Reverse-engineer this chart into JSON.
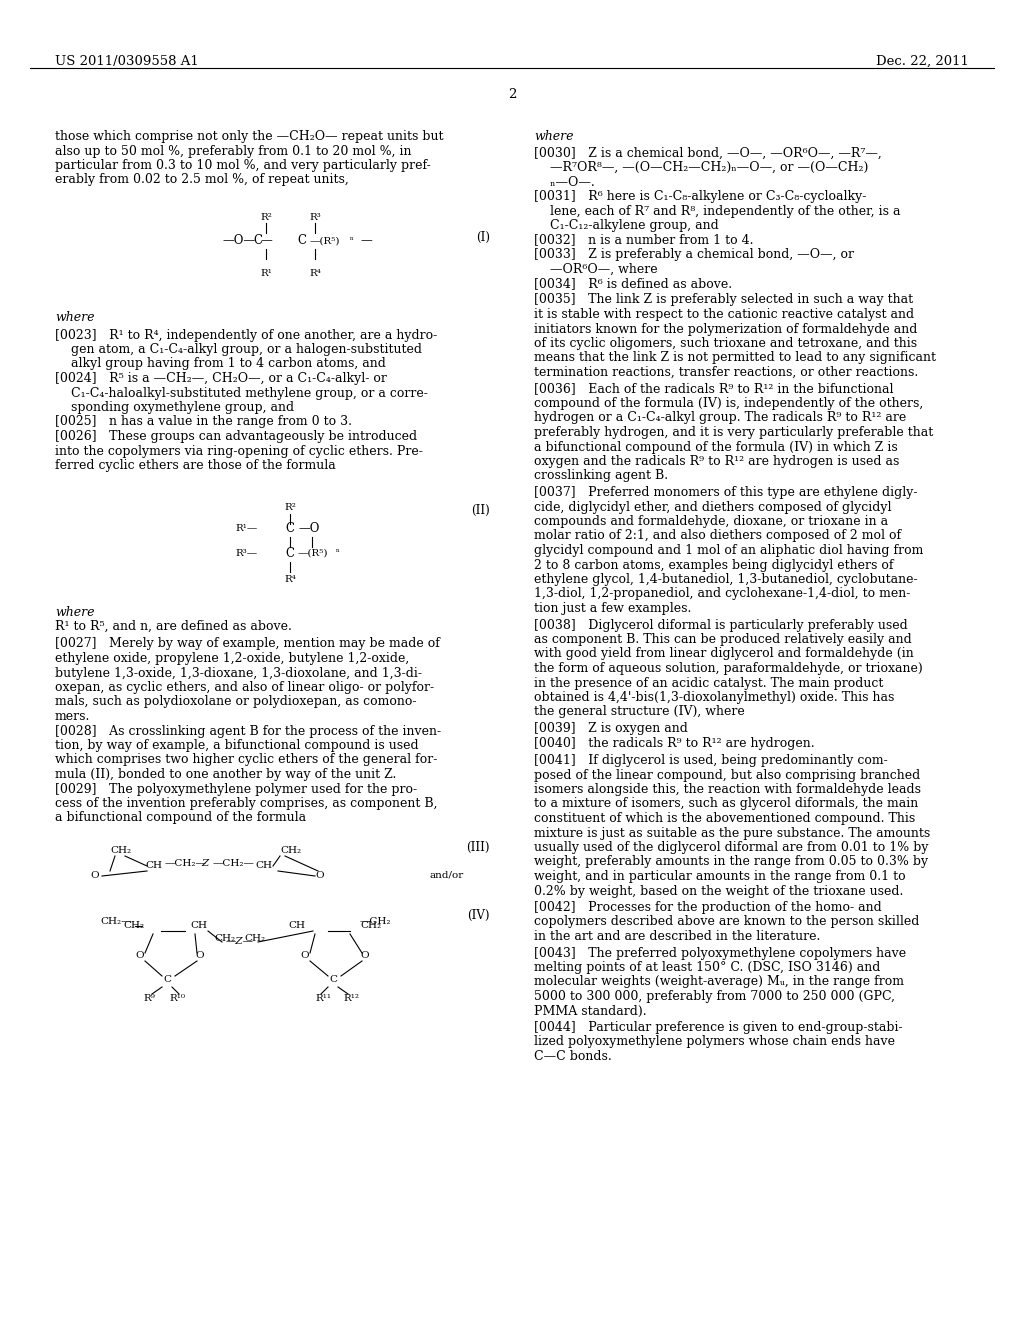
{
  "bg_color": "#ffffff",
  "header_left": "US 2011/0309558 A1",
  "header_right": "Dec. 22, 2011",
  "page_number": "2",
  "font_size_body": 9.0,
  "font_size_header": 9.5,
  "font_size_formula": 8.5,
  "font_size_formula_small": 7.5
}
